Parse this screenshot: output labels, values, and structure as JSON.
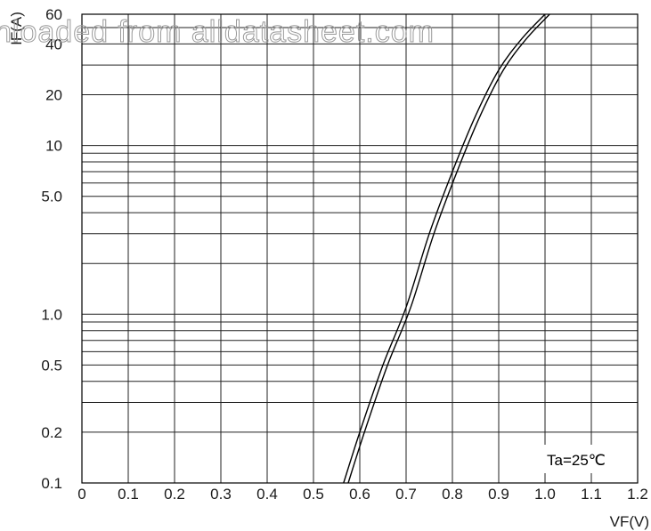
{
  "watermark": "nloaded from alldatasheet.com",
  "chart_data": {
    "type": "line",
    "xlabel": "VF(V)",
    "ylabel": "IF(A)",
    "xlim": [
      0,
      1.2
    ],
    "ylim": [
      0.1,
      60
    ],
    "y_scale": "log",
    "grid": true,
    "x_ticks": [
      "0",
      "0.1",
      "0.2",
      "0.3",
      "0.4",
      "0.5",
      "0.6",
      "0.7",
      "0.8",
      "0.9",
      "1.0",
      "1.1",
      "1.2"
    ],
    "y_ticks": [
      {
        "value": 0.1,
        "label": "0.1"
      },
      {
        "value": 0.2,
        "label": "0.2"
      },
      {
        "value": 0.5,
        "label": "0.5"
      },
      {
        "value": 1,
        "label": "1.0"
      },
      {
        "value": 5,
        "label": "5.0"
      },
      {
        "value": 10,
        "label": "10"
      },
      {
        "value": 20,
        "label": "20"
      },
      {
        "value": 40,
        "label": "40"
      },
      {
        "value": 60,
        "label": "60"
      }
    ],
    "y_grid_values": [
      0.2,
      0.3,
      0.4,
      0.5,
      0.6,
      0.7,
      0.8,
      0.9,
      1,
      2,
      3,
      4,
      5,
      6,
      7,
      8,
      9,
      10,
      20,
      30,
      40,
      50
    ],
    "annotation": "Ta=25℃",
    "series": [
      {
        "x": [
          0.565,
          0.6,
          0.65,
          0.7,
          0.75,
          0.8,
          0.85,
          0.9,
          0.95,
          1.0
        ],
        "y": [
          0.1,
          0.2,
          0.5,
          1.1,
          3.0,
          7.0,
          15,
          28,
          43,
          60
        ]
      },
      {
        "x": [
          0.575,
          0.61,
          0.66,
          0.71,
          0.76,
          0.81,
          0.86,
          0.91,
          0.96,
          1.01
        ],
        "y": [
          0.1,
          0.2,
          0.5,
          1.1,
          3.0,
          7.0,
          15,
          28,
          43,
          60
        ]
      }
    ]
  }
}
